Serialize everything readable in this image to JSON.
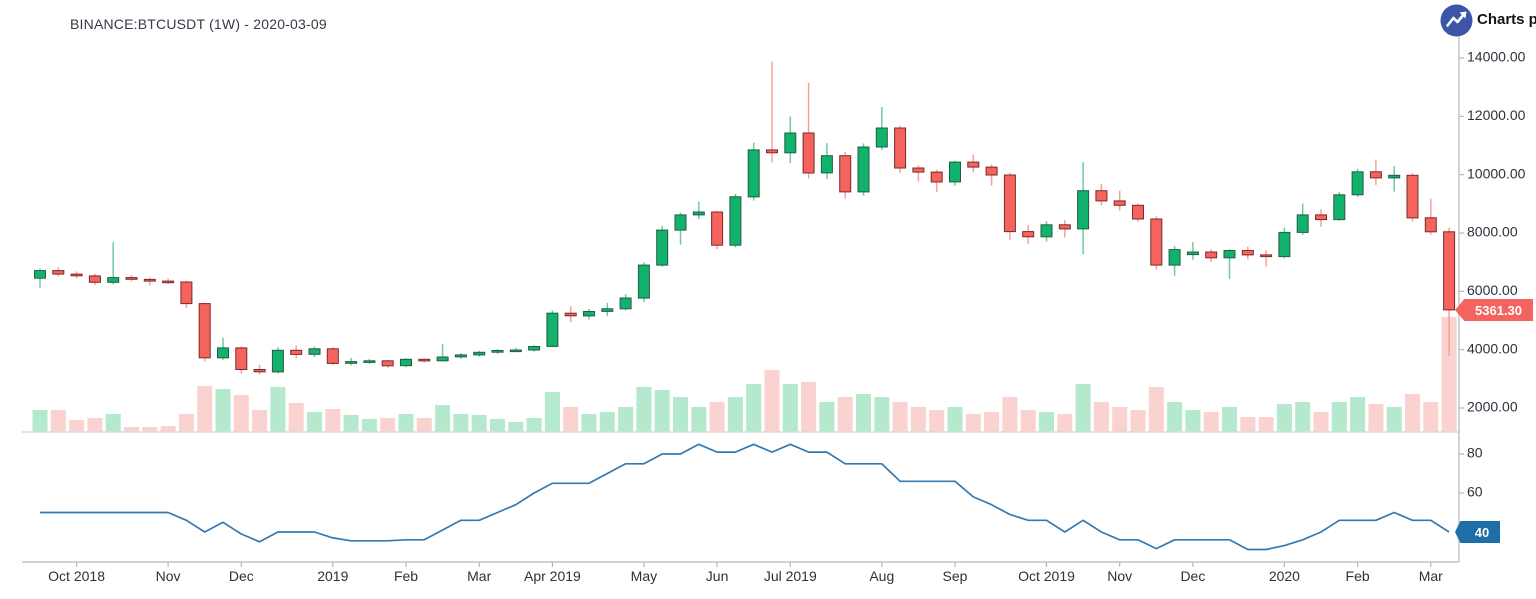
{
  "header": {
    "title": "BINANCE:BTCUSDT (1W) - 2020-03-09"
  },
  "branding": {
    "label": "Charts p",
    "logo_icon": "line-chart-arrow-icon",
    "logo_color": "#3b56a7"
  },
  "price_axis": {
    "ticks": [
      {
        "value": 14000,
        "label": "14000.00"
      },
      {
        "value": 12000,
        "label": "12000.00"
      },
      {
        "value": 10000,
        "label": "10000.00"
      },
      {
        "value": 8000,
        "label": "8000.00"
      },
      {
        "value": 6000,
        "label": "6000.00"
      },
      {
        "value": 4000,
        "label": "4000.00"
      },
      {
        "value": 2000,
        "label": "2000.00"
      }
    ],
    "last_price": "5361.30",
    "badge_color": "#f4635d"
  },
  "rsi_axis": {
    "ticks": [
      {
        "value": 80,
        "label": "80"
      },
      {
        "value": 60,
        "label": "60"
      }
    ],
    "last_value": "40",
    "badge_color": "#1e6fa5"
  },
  "x_axis": {
    "labels": [
      {
        "text": "Oct 2018",
        "week": 3
      },
      {
        "text": "Nov",
        "week": 8
      },
      {
        "text": "Dec",
        "week": 12
      },
      {
        "text": "2019",
        "week": 17
      },
      {
        "text": "Feb",
        "week": 21
      },
      {
        "text": "Mar",
        "week": 25
      },
      {
        "text": "Apr 2019",
        "week": 29
      },
      {
        "text": "May",
        "week": 34
      },
      {
        "text": "Jun",
        "week": 38
      },
      {
        "text": "Jul 2019",
        "week": 42
      },
      {
        "text": "Aug",
        "week": 47
      },
      {
        "text": "Sep",
        "week": 51
      },
      {
        "text": "Oct 2019",
        "week": 56
      },
      {
        "text": "Nov",
        "week": 60
      },
      {
        "text": "Dec",
        "week": 64
      },
      {
        "text": "2020",
        "week": 69
      },
      {
        "text": "Feb",
        "week": 73
      },
      {
        "text": "Mar",
        "week": 77
      }
    ]
  },
  "colors": {
    "up": "#10b26c",
    "up_border": "#265c44",
    "up_wick": "#6fcb9f",
    "down": "#f4635d",
    "down_border": "#7c2b27",
    "down_wick": "#f5a09b",
    "vol_up": "#b4e9cd",
    "vol_down": "#fad2cf",
    "rsi_line": "#3579b1",
    "axis_line": "#b2b8bf",
    "divider": "#d8dbdf",
    "text": "#2c313c"
  },
  "chart_data": {
    "type": "candlestick",
    "symbol": "BINANCE:BTCUSDT",
    "interval": "1W",
    "as_of": "2020-03-09",
    "price_range": [
      2000,
      14000
    ],
    "rsi_range_ticks": [
      40,
      60,
      80
    ],
    "last_close": 5361.3,
    "last_rsi": 40,
    "open": [
      6450,
      6710,
      6590,
      6530,
      6310,
      6470,
      6410,
      6350,
      6320,
      5580,
      3720,
      4060,
      3320,
      3240,
      3980,
      3840,
      4030,
      3530,
      3590,
      3620,
      3450,
      3670,
      3620,
      3750,
      3820,
      3910,
      3970,
      3990,
      4110,
      5250,
      5160,
      5310,
      5400,
      5770,
      6900,
      8100,
      8620,
      8720,
      7580,
      9240,
      10850,
      10750,
      11430,
      10060,
      10650,
      9410,
      10950,
      11600,
      10230,
      10090,
      9750,
      10430,
      10260,
      9990,
      8050,
      7870,
      8280,
      8140,
      9450,
      9100,
      8950,
      8480,
      6900,
      7260,
      7350,
      7150,
      7400,
      7250,
      7190,
      8020,
      8620,
      8460,
      9310,
      10100,
      9890,
      9980,
      8520,
      8040
    ],
    "high": [
      6780,
      6830,
      6680,
      6600,
      7680,
      6550,
      6470,
      6440,
      6360,
      5620,
      4410,
      4110,
      3480,
      4080,
      4140,
      4110,
      4080,
      3720,
      3680,
      3650,
      3710,
      3700,
      4190,
      3880,
      3960,
      4020,
      4060,
      4150,
      5350,
      5490,
      5400,
      5600,
      5900,
      7000,
      8250,
      8700,
      9080,
      8760,
      9340,
      11100,
      13880,
      12000,
      13150,
      11080,
      10780,
      11070,
      12320,
      11680,
      10330,
      10160,
      10480,
      10680,
      10350,
      10070,
      8270,
      8400,
      8440,
      10430,
      9690,
      9450,
      9010,
      8570,
      7560,
      7690,
      7440,
      7450,
      7530,
      7410,
      8190,
      9010,
      8810,
      9400,
      10200,
      10520,
      10290,
      10050,
      9180,
      8180
    ],
    "low": [
      6120,
      6510,
      6440,
      6210,
      6240,
      6340,
      6200,
      6260,
      5430,
      3590,
      3640,
      3180,
      3150,
      3180,
      3700,
      3750,
      3470,
      3460,
      3520,
      3380,
      3400,
      3560,
      3590,
      3680,
      3760,
      3850,
      3910,
      3930,
      4080,
      4950,
      5030,
      5150,
      5350,
      5630,
      6840,
      7600,
      8480,
      7450,
      7510,
      9110,
      10420,
      10400,
      9870,
      9850,
      9180,
      9280,
      10850,
      10060,
      9760,
      9400,
      9620,
      10080,
      9630,
      7770,
      7630,
      7710,
      7850,
      7270,
      8950,
      8770,
      8380,
      6750,
      6530,
      7080,
      7010,
      6420,
      7100,
      6850,
      7130,
      7940,
      8210,
      8420,
      9230,
      9650,
      9420,
      8400,
      7940,
      3780
    ],
    "close": [
      6710,
      6590,
      6530,
      6310,
      6470,
      6410,
      6350,
      6320,
      5580,
      3720,
      4060,
      3320,
      3240,
      3980,
      3840,
      4030,
      3530,
      3590,
      3620,
      3450,
      3670,
      3620,
      3750,
      3820,
      3910,
      3970,
      3990,
      4110,
      5250,
      5160,
      5310,
      5400,
      5770,
      6900,
      8100,
      8620,
      8720,
      7580,
      9240,
      10850,
      10750,
      11430,
      10060,
      10650,
      9410,
      10950,
      11600,
      10230,
      10090,
      9750,
      10430,
      10260,
      9990,
      8050,
      7870,
      8280,
      8140,
      9450,
      9100,
      8950,
      8480,
      6900,
      7430,
      7350,
      7150,
      7400,
      7250,
      7190,
      8020,
      8620,
      8460,
      9310,
      10100,
      9890,
      9980,
      8520,
      8040,
      5361.3
    ],
    "volume_rel": [
      22,
      22,
      12,
      14,
      18,
      5,
      5,
      6,
      18,
      46,
      43,
      37,
      22,
      45,
      29,
      20,
      23,
      17,
      13,
      14,
      18,
      14,
      27,
      18,
      17,
      13,
      10,
      14,
      40,
      25,
      18,
      20,
      25,
      45,
      42,
      35,
      25,
      30,
      35,
      48,
      62,
      48,
      50,
      30,
      35,
      38,
      35,
      30,
      25,
      22,
      25,
      18,
      20,
      35,
      22,
      20,
      18,
      48,
      30,
      25,
      22,
      45,
      30,
      22,
      20,
      25,
      15,
      15,
      28,
      30,
      20,
      30,
      35,
      28,
      25,
      38,
      30,
      115
    ],
    "rsi": [
      50,
      50,
      50,
      50,
      50,
      50,
      50,
      50,
      46,
      40,
      45,
      39,
      35,
      40,
      40,
      40,
      37,
      35.5,
      35.5,
      35.5,
      36,
      36,
      41,
      46,
      46,
      50,
      54,
      60,
      65,
      65,
      65,
      70,
      75,
      75,
      80,
      80,
      85,
      81,
      81,
      85,
      81,
      85,
      81,
      81,
      75,
      75,
      75,
      66,
      66,
      66,
      66,
      58,
      54,
      49,
      46,
      46,
      40,
      46,
      40,
      36,
      36,
      31.5,
      36,
      36,
      36,
      36,
      31,
      31,
      33,
      36,
      40,
      46,
      46,
      46,
      50,
      46,
      46,
      40
    ]
  }
}
